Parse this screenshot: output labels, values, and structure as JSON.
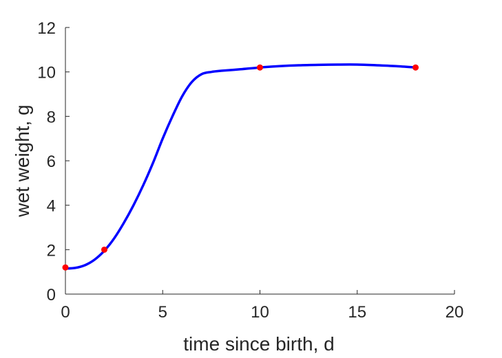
{
  "chart_data": {
    "type": "line",
    "title": "",
    "xlabel": "time since birth, d",
    "ylabel": "wet weight, g",
    "xlim": [
      0,
      20
    ],
    "ylim": [
      0,
      12
    ],
    "xticks": [
      0,
      5,
      10,
      15,
      20
    ],
    "yticks": [
      0,
      2,
      4,
      6,
      8,
      10,
      12
    ],
    "xtick_labels": [
      "0",
      "5",
      "10",
      "15",
      "20"
    ],
    "ytick_labels": [
      "0",
      "2",
      "4",
      "6",
      "8",
      "10",
      "12"
    ],
    "grid": false,
    "legend": "none",
    "series": [
      {
        "kind": "line",
        "color": "#0000ff",
        "x": [
          0,
          0.5,
          1,
          1.5,
          2,
          2.5,
          3,
          3.5,
          4,
          4.5,
          5,
          5.5,
          6,
          6.5,
          7,
          7.5,
          8,
          9,
          10,
          11,
          12,
          13,
          14,
          15,
          16,
          17,
          18
        ],
        "y": [
          1.15,
          1.18,
          1.3,
          1.55,
          1.95,
          2.5,
          3.2,
          4.0,
          4.9,
          5.9,
          7.0,
          8.0,
          8.9,
          9.55,
          9.9,
          10.0,
          10.05,
          10.12,
          10.2,
          10.26,
          10.3,
          10.32,
          10.33,
          10.33,
          10.3,
          10.26,
          10.2
        ]
      },
      {
        "kind": "scatter",
        "color": "#ff0000",
        "x": [
          0,
          2,
          10,
          18
        ],
        "y": [
          1.2,
          2.0,
          10.2,
          10.2
        ]
      }
    ]
  }
}
